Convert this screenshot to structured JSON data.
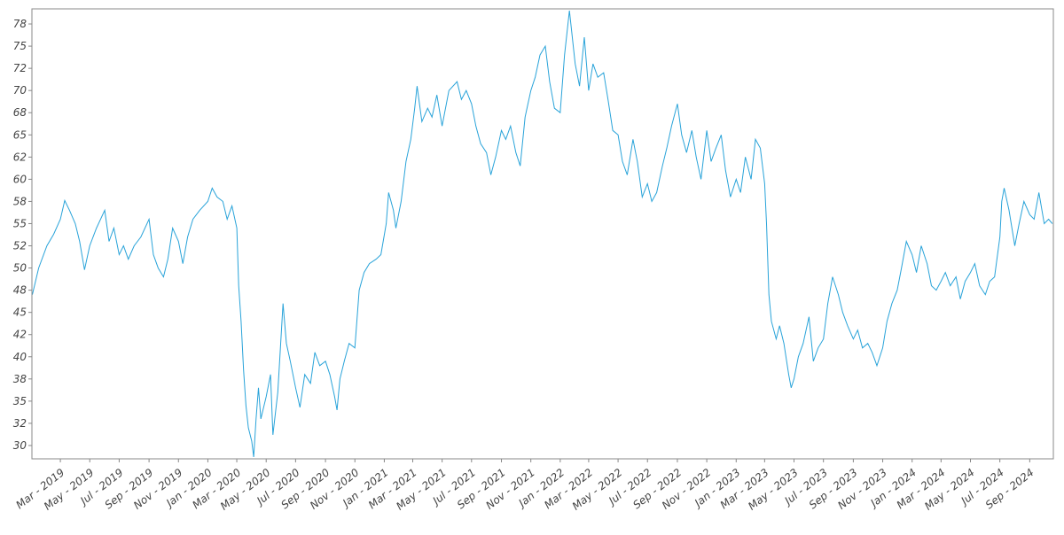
{
  "chart_data": {
    "type": "line",
    "title": "",
    "xlabel": "",
    "ylabel": "",
    "xlim": [
      "2019-01-01",
      "2024-10-20"
    ],
    "ylim": [
      28.5,
      79.2
    ],
    "grid": false,
    "colors": {
      "line": "#29a3d9",
      "axis": "#888888",
      "tick_text": "#444444"
    },
    "y_ticks": [
      "30",
      "32",
      "35",
      "38",
      "40",
      "42",
      "45",
      "48",
      "50",
      "52",
      "55",
      "58",
      "60",
      "62",
      "65",
      "68",
      "70",
      "72",
      "75",
      "78"
    ],
    "y_tick_values": [
      30,
      32.5,
      35,
      37.5,
      40,
      42.5,
      45,
      47.5,
      50,
      52.5,
      55,
      57.5,
      60,
      62.5,
      65,
      67.5,
      70,
      72.5,
      75,
      77.5
    ],
    "x_ticks": [
      "Mar - 2019",
      "May - 2019",
      "Jul - 2019",
      "Sep - 2019",
      "Nov - 2019",
      "Jan - 2020",
      "Mar - 2020",
      "May - 2020",
      "Jul - 2020",
      "Sep - 2020",
      "Nov - 2020",
      "Jan - 2021",
      "Mar - 2021",
      "May - 2021",
      "Jul - 2021",
      "Sep - 2021",
      "Nov - 2021",
      "Jan - 2022",
      "Mar - 2022",
      "May - 2022",
      "Jul - 2022",
      "Sep - 2022",
      "Nov - 2022",
      "Jan - 2023",
      "Mar - 2023",
      "May - 2023",
      "Jul - 2023",
      "Sep - 2023",
      "Nov - 2023",
      "Jan - 2024",
      "Mar - 2024",
      "May - 2024",
      "Jul - 2024",
      "Sep - 2024"
    ],
    "x_tick_dates": [
      "2019-03-01",
      "2019-05-01",
      "2019-07-01",
      "2019-09-01",
      "2019-11-01",
      "2020-01-01",
      "2020-03-01",
      "2020-05-01",
      "2020-07-01",
      "2020-09-01",
      "2020-11-01",
      "2021-01-01",
      "2021-03-01",
      "2021-05-01",
      "2021-07-01",
      "2021-09-01",
      "2021-11-01",
      "2022-01-01",
      "2022-03-01",
      "2022-05-01",
      "2022-07-01",
      "2022-09-01",
      "2022-11-01",
      "2023-01-01",
      "2023-03-01",
      "2023-05-01",
      "2023-07-01",
      "2023-09-01",
      "2023-11-01",
      "2024-01-01",
      "2024-03-01",
      "2024-05-01",
      "2024-07-01",
      "2024-09-01"
    ],
    "series": [
      {
        "points": [
          [
            "2019-01-02",
            47.0
          ],
          [
            "2019-01-15",
            50.0
          ],
          [
            "2019-02-01",
            52.5
          ],
          [
            "2019-02-15",
            53.8
          ],
          [
            "2019-03-01",
            55.5
          ],
          [
            "2019-03-10",
            57.6
          ],
          [
            "2019-03-20",
            56.5
          ],
          [
            "2019-04-01",
            55.0
          ],
          [
            "2019-04-10",
            53.0
          ],
          [
            "2019-04-20",
            49.8
          ],
          [
            "2019-05-01",
            52.5
          ],
          [
            "2019-05-15",
            54.5
          ],
          [
            "2019-06-01",
            56.5
          ],
          [
            "2019-06-10",
            53.0
          ],
          [
            "2019-06-20",
            54.5
          ],
          [
            "2019-07-01",
            51.5
          ],
          [
            "2019-07-10",
            52.5
          ],
          [
            "2019-07-20",
            51.0
          ],
          [
            "2019-08-01",
            52.5
          ],
          [
            "2019-08-15",
            53.5
          ],
          [
            "2019-09-01",
            55.5
          ],
          [
            "2019-09-10",
            51.5
          ],
          [
            "2019-09-20",
            50.0
          ],
          [
            "2019-10-01",
            49.0
          ],
          [
            "2019-10-10",
            51.0
          ],
          [
            "2019-10-20",
            54.5
          ],
          [
            "2019-11-01",
            53.0
          ],
          [
            "2019-11-10",
            50.5
          ],
          [
            "2019-11-20",
            53.5
          ],
          [
            "2019-12-01",
            55.5
          ],
          [
            "2019-12-15",
            56.5
          ],
          [
            "2020-01-01",
            57.5
          ],
          [
            "2020-01-10",
            59.0
          ],
          [
            "2020-01-20",
            58.0
          ],
          [
            "2020-02-01",
            57.5
          ],
          [
            "2020-02-10",
            55.5
          ],
          [
            "2020-02-20",
            57.0
          ],
          [
            "2020-03-01",
            54.5
          ],
          [
            "2020-03-05",
            48.0
          ],
          [
            "2020-03-10",
            44.0
          ],
          [
            "2020-03-15",
            38.5
          ],
          [
            "2020-03-20",
            34.5
          ],
          [
            "2020-03-25",
            32.0
          ],
          [
            "2020-04-01",
            30.5
          ],
          [
            "2020-04-05",
            28.7
          ],
          [
            "2020-04-10",
            33.0
          ],
          [
            "2020-04-15",
            36.5
          ],
          [
            "2020-04-20",
            33.0
          ],
          [
            "2020-05-01",
            35.5
          ],
          [
            "2020-05-10",
            38.0
          ],
          [
            "2020-05-15",
            31.2
          ],
          [
            "2020-05-25",
            36.0
          ],
          [
            "2020-06-05",
            46.0
          ],
          [
            "2020-06-12",
            41.5
          ],
          [
            "2020-06-20",
            39.5
          ],
          [
            "2020-07-01",
            36.5
          ],
          [
            "2020-07-10",
            34.3
          ],
          [
            "2020-07-20",
            38.0
          ],
          [
            "2020-08-01",
            37.0
          ],
          [
            "2020-08-10",
            40.5
          ],
          [
            "2020-08-20",
            39.0
          ],
          [
            "2020-09-01",
            39.5
          ],
          [
            "2020-09-10",
            38.0
          ],
          [
            "2020-09-20",
            35.5
          ],
          [
            "2020-09-25",
            34.0
          ],
          [
            "2020-10-01",
            37.5
          ],
          [
            "2020-10-10",
            39.5
          ],
          [
            "2020-10-20",
            41.5
          ],
          [
            "2020-11-01",
            41.0
          ],
          [
            "2020-11-10",
            47.5
          ],
          [
            "2020-11-20",
            49.5
          ],
          [
            "2020-12-01",
            50.5
          ],
          [
            "2020-12-15",
            51.0
          ],
          [
            "2020-12-25",
            51.5
          ],
          [
            "2021-01-05",
            55.0
          ],
          [
            "2021-01-10",
            58.5
          ],
          [
            "2021-01-20",
            56.5
          ],
          [
            "2021-01-25",
            54.5
          ],
          [
            "2021-02-05",
            57.5
          ],
          [
            "2021-02-15",
            62.0
          ],
          [
            "2021-02-25",
            64.5
          ],
          [
            "2021-03-05",
            68.0
          ],
          [
            "2021-03-10",
            70.5
          ],
          [
            "2021-03-20",
            66.5
          ],
          [
            "2021-04-01",
            68.0
          ],
          [
            "2021-04-10",
            67.0
          ],
          [
            "2021-04-20",
            69.5
          ],
          [
            "2021-05-01",
            66.0
          ],
          [
            "2021-05-15",
            70.0
          ],
          [
            "2021-06-01",
            71.0
          ],
          [
            "2021-06-10",
            69.0
          ],
          [
            "2021-06-20",
            70.0
          ],
          [
            "2021-07-01",
            68.5
          ],
          [
            "2021-07-10",
            66.0
          ],
          [
            "2021-07-20",
            64.0
          ],
          [
            "2021-08-01",
            63.0
          ],
          [
            "2021-08-10",
            60.5
          ],
          [
            "2021-08-20",
            62.5
          ],
          [
            "2021-09-01",
            65.5
          ],
          [
            "2021-09-10",
            64.5
          ],
          [
            "2021-09-20",
            66.0
          ],
          [
            "2021-10-01",
            63.0
          ],
          [
            "2021-10-10",
            61.5
          ],
          [
            "2021-10-20",
            67.0
          ],
          [
            "2021-11-01",
            70.0
          ],
          [
            "2021-11-10",
            71.5
          ],
          [
            "2021-11-20",
            74.0
          ],
          [
            "2021-12-01",
            75.0
          ],
          [
            "2021-12-10",
            71.0
          ],
          [
            "2021-12-20",
            68.0
          ],
          [
            "2022-01-01",
            67.5
          ],
          [
            "2022-01-10",
            74.0
          ],
          [
            "2022-01-20",
            79.0
          ],
          [
            "2022-02-01",
            73.0
          ],
          [
            "2022-02-10",
            70.5
          ],
          [
            "2022-02-20",
            76.0
          ],
          [
            "2022-03-01",
            70.0
          ],
          [
            "2022-03-10",
            73.0
          ],
          [
            "2022-03-20",
            71.5
          ],
          [
            "2022-04-01",
            72.0
          ],
          [
            "2022-04-10",
            69.0
          ],
          [
            "2022-04-20",
            65.5
          ],
          [
            "2022-05-01",
            65.0
          ],
          [
            "2022-05-10",
            62.0
          ],
          [
            "2022-05-20",
            60.5
          ],
          [
            "2022-06-01",
            64.5
          ],
          [
            "2022-06-10",
            62.0
          ],
          [
            "2022-06-20",
            58.0
          ],
          [
            "2022-07-01",
            59.5
          ],
          [
            "2022-07-10",
            57.5
          ],
          [
            "2022-07-20",
            58.5
          ],
          [
            "2022-08-01",
            61.5
          ],
          [
            "2022-08-10",
            63.5
          ],
          [
            "2022-08-20",
            66.0
          ],
          [
            "2022-09-01",
            68.5
          ],
          [
            "2022-09-10",
            65.0
          ],
          [
            "2022-09-20",
            63.0
          ],
          [
            "2022-10-01",
            65.5
          ],
          [
            "2022-10-10",
            62.5
          ],
          [
            "2022-10-20",
            60.0
          ],
          [
            "2022-11-01",
            65.5
          ],
          [
            "2022-11-10",
            62.0
          ],
          [
            "2022-11-20",
            63.5
          ],
          [
            "2022-12-01",
            65.0
          ],
          [
            "2022-12-10",
            61.0
          ],
          [
            "2022-12-20",
            58.0
          ],
          [
            "2023-01-01",
            60.0
          ],
          [
            "2023-01-10",
            58.5
          ],
          [
            "2023-01-20",
            62.5
          ],
          [
            "2023-02-01",
            60.0
          ],
          [
            "2023-02-10",
            64.5
          ],
          [
            "2023-02-20",
            63.5
          ],
          [
            "2023-03-01",
            59.5
          ],
          [
            "2023-03-05",
            55.0
          ],
          [
            "2023-03-10",
            47.0
          ],
          [
            "2023-03-15",
            44.0
          ],
          [
            "2023-03-25",
            42.0
          ],
          [
            "2023-04-01",
            43.5
          ],
          [
            "2023-04-10",
            41.5
          ],
          [
            "2023-04-20",
            38.0
          ],
          [
            "2023-04-25",
            36.5
          ],
          [
            "2023-05-01",
            37.5
          ],
          [
            "2023-05-10",
            40.0
          ],
          [
            "2023-05-20",
            41.5
          ],
          [
            "2023-06-01",
            44.5
          ],
          [
            "2023-06-10",
            39.5
          ],
          [
            "2023-06-20",
            41.0
          ],
          [
            "2023-07-01",
            42.0
          ],
          [
            "2023-07-10",
            46.0
          ],
          [
            "2023-07-20",
            49.0
          ],
          [
            "2023-08-01",
            47.0
          ],
          [
            "2023-08-10",
            45.0
          ],
          [
            "2023-08-20",
            43.5
          ],
          [
            "2023-09-01",
            42.0
          ],
          [
            "2023-09-10",
            43.0
          ],
          [
            "2023-09-20",
            41.0
          ],
          [
            "2023-10-01",
            41.5
          ],
          [
            "2023-10-10",
            40.5
          ],
          [
            "2023-10-20",
            39.0
          ],
          [
            "2023-11-01",
            41.0
          ],
          [
            "2023-11-10",
            44.0
          ],
          [
            "2023-11-20",
            46.0
          ],
          [
            "2023-12-01",
            47.5
          ],
          [
            "2023-12-10",
            50.0
          ],
          [
            "2023-12-20",
            53.0
          ],
          [
            "2024-01-01",
            51.5
          ],
          [
            "2024-01-10",
            49.5
          ],
          [
            "2024-01-20",
            52.5
          ],
          [
            "2024-02-01",
            50.5
          ],
          [
            "2024-02-10",
            48.0
          ],
          [
            "2024-02-20",
            47.5
          ],
          [
            "2024-03-01",
            48.5
          ],
          [
            "2024-03-10",
            49.5
          ],
          [
            "2024-03-20",
            48.0
          ],
          [
            "2024-04-01",
            49.0
          ],
          [
            "2024-04-10",
            46.5
          ],
          [
            "2024-04-20",
            48.5
          ],
          [
            "2024-05-01",
            49.5
          ],
          [
            "2024-05-10",
            50.5
          ],
          [
            "2024-05-20",
            48.0
          ],
          [
            "2024-06-01",
            47.0
          ],
          [
            "2024-06-10",
            48.5
          ],
          [
            "2024-06-20",
            49.0
          ],
          [
            "2024-07-01",
            53.5
          ],
          [
            "2024-07-05",
            57.5
          ],
          [
            "2024-07-10",
            59.0
          ],
          [
            "2024-07-20",
            56.5
          ],
          [
            "2024-08-01",
            52.5
          ],
          [
            "2024-08-10",
            55.0
          ],
          [
            "2024-08-20",
            57.5
          ],
          [
            "2024-09-01",
            56.0
          ],
          [
            "2024-09-10",
            55.5
          ],
          [
            "2024-09-20",
            58.5
          ],
          [
            "2024-10-01",
            55.0
          ],
          [
            "2024-10-10",
            55.5
          ],
          [
            "2024-10-18",
            55.0
          ]
        ]
      }
    ]
  }
}
